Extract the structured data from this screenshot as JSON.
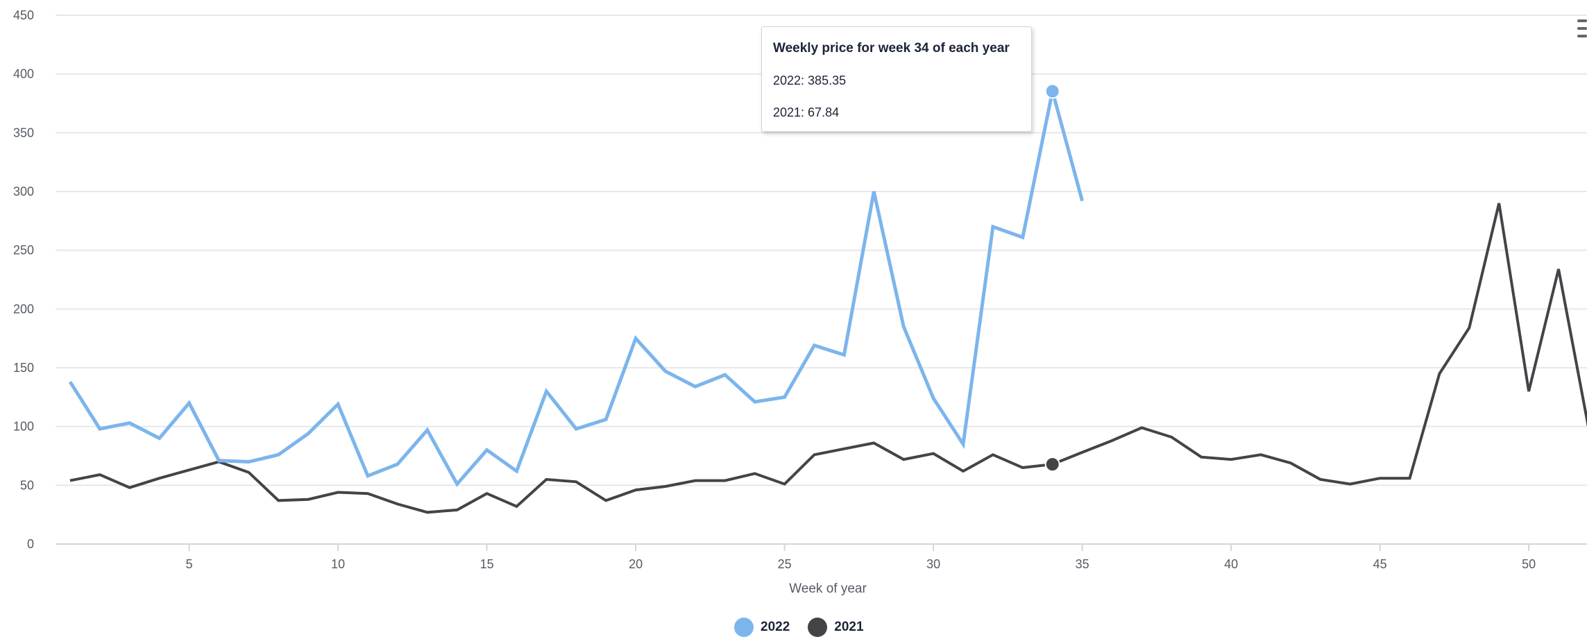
{
  "chart_data": {
    "type": "line",
    "xlabel": "Week of year",
    "ylabel": "",
    "xlim": [
      0.5,
      53
    ],
    "ylim": [
      0,
      450
    ],
    "x_ticks": [
      5,
      10,
      15,
      20,
      25,
      30,
      35,
      40,
      45,
      50
    ],
    "y_ticks": [
      0,
      50,
      100,
      150,
      200,
      250,
      300,
      350,
      400,
      450
    ],
    "grid": true,
    "legend_position": "bottom-center",
    "series": [
      {
        "name": "2022",
        "color": "#7cb5ec",
        "x": [
          1,
          2,
          3,
          4,
          5,
          6,
          7,
          8,
          9,
          10,
          11,
          12,
          13,
          14,
          15,
          16,
          17,
          18,
          19,
          20,
          21,
          22,
          23,
          24,
          25,
          26,
          27,
          28,
          29,
          30,
          31,
          32,
          33,
          34,
          35
        ],
        "values": [
          138,
          98,
          103,
          90,
          120,
          71,
          70,
          76,
          94,
          119,
          58,
          68,
          97,
          51,
          80,
          62,
          130,
          98,
          106,
          175,
          147,
          134,
          144,
          121,
          125,
          169,
          161,
          300,
          185,
          124,
          85,
          270,
          261,
          385.35,
          292
        ]
      },
      {
        "name": "2021",
        "color": "#434348",
        "x": [
          1,
          2,
          3,
          4,
          5,
          6,
          7,
          8,
          9,
          10,
          11,
          12,
          13,
          14,
          15,
          16,
          17,
          18,
          19,
          20,
          21,
          22,
          23,
          24,
          25,
          26,
          27,
          28,
          29,
          30,
          31,
          32,
          33,
          34,
          35,
          36,
          37,
          38,
          39,
          40,
          41,
          42,
          43,
          44,
          45,
          46,
          47,
          48,
          49,
          50,
          51,
          52
        ],
        "values": [
          54,
          59,
          48,
          56,
          63,
          70,
          61,
          37,
          38,
          44,
          43,
          34,
          27,
          29,
          43,
          32,
          55,
          53,
          37,
          46,
          49,
          54,
          54,
          60,
          51,
          76,
          81,
          86,
          72,
          77,
          62,
          76,
          65,
          67.84,
          78,
          88,
          99,
          91,
          74,
          72,
          76,
          69,
          55,
          51,
          56,
          56,
          145,
          184,
          290,
          130,
          234,
          100
        ]
      }
    ],
    "tooltip": {
      "title": "Weekly price for week 34 of each year",
      "rows": [
        "2022: 385.35",
        "2021: 67.84"
      ],
      "week": 34
    }
  }
}
